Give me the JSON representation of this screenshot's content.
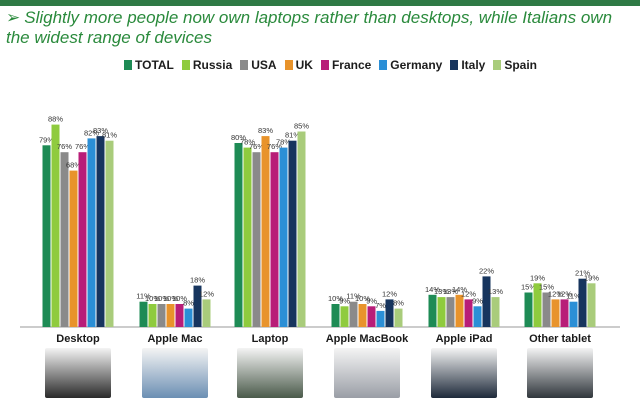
{
  "header": {
    "subtitle_arrow": "➢",
    "subtitle": "Slightly more people now own laptops rather than desktops, while Italians own the widest range of devices"
  },
  "chart_data": {
    "type": "bar",
    "categories": [
      "Desktop",
      "Apple Mac",
      "Laptop",
      "Apple MacBook",
      "Apple iPad",
      "Other tablet"
    ],
    "series": [
      {
        "name": "TOTAL",
        "color": "#1e8b55",
        "values": [
          79,
          11,
          80,
          10,
          14,
          15
        ]
      },
      {
        "name": "Russia",
        "color": "#8fcb3e",
        "values": [
          88,
          10,
          78,
          9,
          13,
          19
        ]
      },
      {
        "name": "USA",
        "color": "#8a8a8a",
        "values": [
          76,
          10,
          76,
          11,
          13,
          15
        ]
      },
      {
        "name": "UK",
        "color": "#e8932b",
        "values": [
          68,
          10,
          83,
          10,
          14,
          12
        ]
      },
      {
        "name": "France",
        "color": "#b81d78",
        "values": [
          76,
          10,
          76,
          9,
          12,
          12
        ]
      },
      {
        "name": "Germany",
        "color": "#2b8fd6",
        "values": [
          82,
          8,
          78,
          7,
          9,
          11
        ]
      },
      {
        "name": "Italy",
        "color": "#17355e",
        "values": [
          83,
          18,
          81,
          12,
          22,
          21
        ]
      },
      {
        "name": "Spain",
        "color": "#a9cc7b",
        "values": [
          81,
          12,
          85,
          8,
          13,
          19
        ]
      }
    ],
    "value_suffix": "%",
    "ylim": [
      0,
      100
    ]
  },
  "thumbnails": [
    {
      "icon": "desktop-tower-icon",
      "color": "#2a2a2a"
    },
    {
      "icon": "imac-icon",
      "color": "#6b8fb3"
    },
    {
      "icon": "laptop-icon",
      "color": "#4a5a4a"
    },
    {
      "icon": "macbook-icon",
      "color": "#9a9ea6"
    },
    {
      "icon": "ipad-icon",
      "color": "#1e2a3a"
    },
    {
      "icon": "tablet-icon",
      "color": "#30363c"
    }
  ]
}
